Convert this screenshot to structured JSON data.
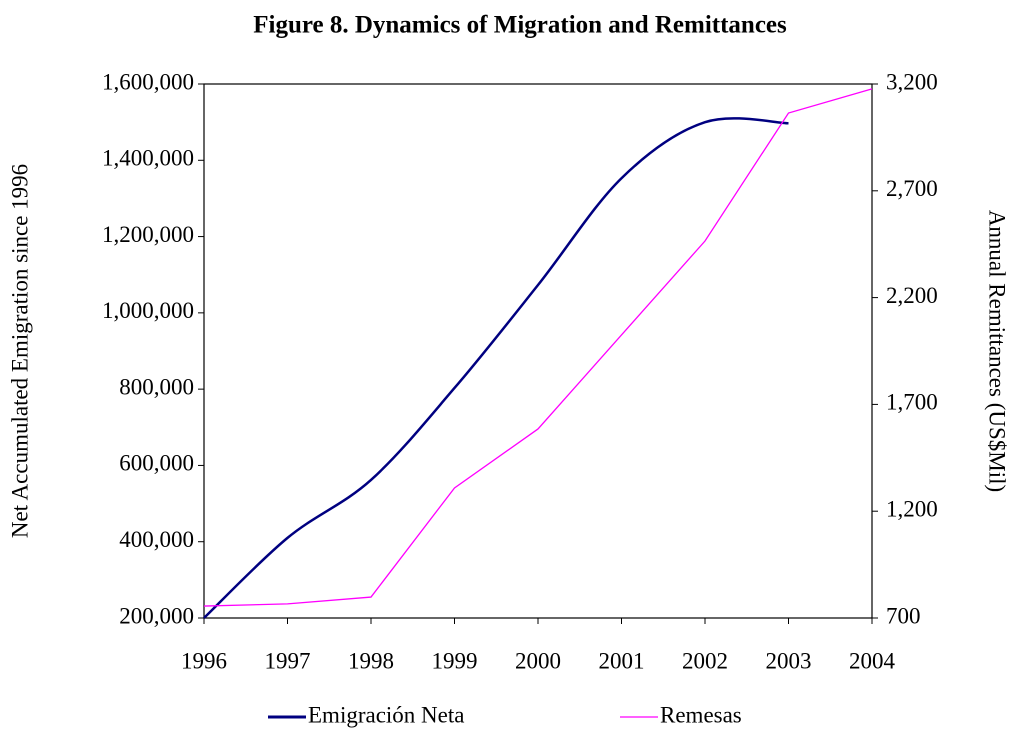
{
  "chart_data": {
    "type": "line",
    "title": "Figure 8. Dynamics of Migration and Remittances",
    "y_label": "Net Accumulated Emigration since 1996",
    "y2_label": "Annual Remittances (US$Mil)",
    "x": [
      1996,
      1997,
      1998,
      1999,
      2000,
      2001,
      2002,
      2003,
      2004
    ],
    "xlim": [
      1996,
      2004
    ],
    "xticks": [
      1996,
      1997,
      1998,
      1999,
      2000,
      2001,
      2002,
      2003,
      2004
    ],
    "ylim": [
      200000,
      1600000
    ],
    "yticks": [
      {
        "value": 200000,
        "label": "200,000"
      },
      {
        "value": 400000,
        "label": "400,000"
      },
      {
        "value": 600000,
        "label": "600,000"
      },
      {
        "value": 800000,
        "label": "800,000"
      },
      {
        "value": 1000000,
        "label": "1,000,000"
      },
      {
        "value": 1200000,
        "label": "1,200,000"
      },
      {
        "value": 1400000,
        "label": "1,400,000"
      },
      {
        "value": 1600000,
        "label": "1,600,000"
      }
    ],
    "y2lim": [
      700,
      3200
    ],
    "y2ticks": [
      700,
      {
        "value": 1200,
        "label": "1,200"
      },
      {
        "value": 1700,
        "label": "1,700"
      },
      {
        "value": 2200,
        "label": "2,200"
      },
      {
        "value": 2700,
        "label": "2,700"
      },
      {
        "value": 3200,
        "label": "3,200"
      }
    ],
    "series": [
      {
        "name": "Emigración Neta",
        "color": "#000080",
        "smooth": true,
        "values": [
          200000,
          410000,
          562000,
          803000,
          1073000,
          1353000,
          1500000,
          1497000,
          null
        ]
      },
      {
        "name": "Remesas",
        "color": "#ff00ff",
        "axis": "y2",
        "values": [
          756,
          766,
          798,
          1309,
          1585,
          2025,
          2465,
          3064,
          3177
        ]
      }
    ]
  }
}
